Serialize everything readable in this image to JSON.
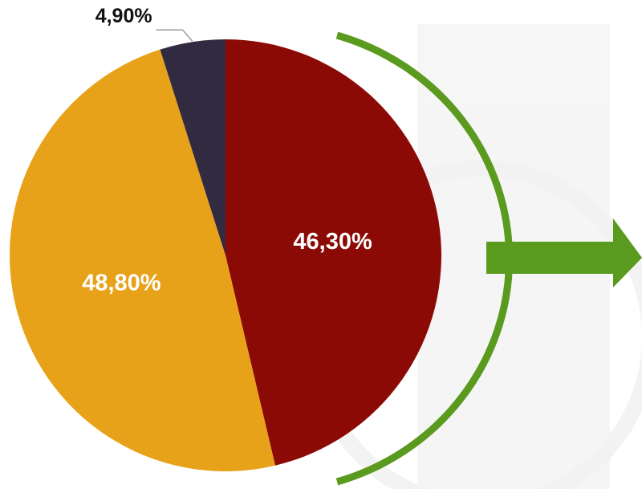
{
  "chart_data": {
    "type": "pie",
    "values": [
      46.3,
      48.8,
      4.9
    ],
    "value_labels": [
      "46,30%",
      "48,80%",
      "4,90%"
    ],
    "colors": [
      "#8b0a05",
      "#e8a21a",
      "#322a40"
    ]
  }
}
